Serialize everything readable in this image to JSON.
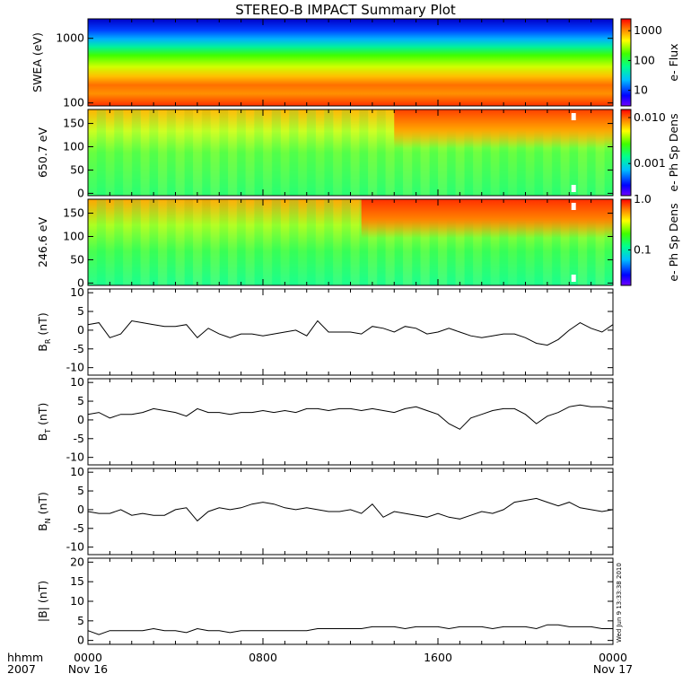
{
  "title": "STEREO-B IMPACT Summary Plot",
  "timestamp": "Wed Jun  9 13:33:38 2010",
  "footer": {
    "left_label_top": "hhmm",
    "left_label_bottom": "2007",
    "date_start": "Nov 16",
    "date_end": "Nov 17"
  },
  "chart_data": [
    {
      "type": "heatmap",
      "name": "swea",
      "ylabel": "SWEA (eV)",
      "yscale": "log",
      "ylim": [
        90,
        2000
      ],
      "yticks": [
        {
          "v": 100,
          "label": "100"
        },
        {
          "v": 1000,
          "label": "1000"
        }
      ],
      "colorbar": {
        "label": "e- Flux",
        "scale": "log",
        "range": [
          3,
          2500
        ],
        "ticks": [
          {
            "v": 10,
            "label": "10"
          },
          {
            "v": 100,
            "label": "100"
          },
          {
            "v": 1000,
            "label": "1000"
          }
        ]
      },
      "xticks": [
        "0000",
        "0800",
        "1600",
        "0000"
      ]
    },
    {
      "type": "heatmap",
      "name": "pad650",
      "ylabel": "650.7 eV",
      "ylim": [
        -5,
        180
      ],
      "yticks": [
        {
          "v": 0,
          "label": "0"
        },
        {
          "v": 50,
          "label": "50"
        },
        {
          "v": 100,
          "label": "100"
        },
        {
          "v": 150,
          "label": "150"
        }
      ],
      "colorbar": {
        "label": "e- Ph Sp Dens",
        "scale": "log",
        "range": [
          0.0002,
          0.015
        ],
        "ticks": [
          {
            "v": 0.001,
            "label": "0.001"
          },
          {
            "v": 0.01,
            "label": "0.010"
          }
        ]
      },
      "xticks": [
        "0000",
        "0800",
        "1600",
        "0000"
      ]
    },
    {
      "type": "heatmap",
      "name": "pad246",
      "ylabel": "246.6 eV",
      "ylim": [
        -5,
        180
      ],
      "yticks": [
        {
          "v": 0,
          "label": "0"
        },
        {
          "v": 50,
          "label": "50"
        },
        {
          "v": 100,
          "label": "100"
        },
        {
          "v": 150,
          "label": "150"
        }
      ],
      "colorbar": {
        "label": "e- Ph Sp Dens",
        "scale": "log",
        "range": [
          0.02,
          1.0
        ],
        "ticks": [
          {
            "v": 0.1,
            "label": "0.1"
          },
          {
            "v": 1.0,
            "label": "1.0"
          }
        ]
      },
      "xticks": [
        "0000",
        "0800",
        "1600",
        "0000"
      ]
    },
    {
      "type": "line",
      "name": "br",
      "ylabel_main": "B",
      "ylabel_sub": "R",
      "ylabel_unit": " (nT)",
      "ylim": [
        -12,
        11
      ],
      "yticks": [
        {
          "v": -10,
          "label": "-10"
        },
        {
          "v": -5,
          "label": "-5"
        },
        {
          "v": 0,
          "label": "0"
        },
        {
          "v": 5,
          "label": "5"
        },
        {
          "v": 10,
          "label": "10"
        }
      ],
      "x_hours": [
        0,
        0.5,
        1,
        1.5,
        2,
        2.5,
        3,
        3.5,
        4,
        4.5,
        5,
        5.5,
        6,
        6.5,
        7,
        7.5,
        8,
        8.5,
        9,
        9.5,
        10,
        10.5,
        11,
        11.5,
        12,
        12.5,
        13,
        13.5,
        14,
        14.5,
        15,
        15.5,
        16,
        16.5,
        17,
        17.5,
        18,
        18.5,
        19,
        19.5,
        20,
        20.5,
        21,
        21.5,
        22,
        22.5,
        23,
        23.5,
        24
      ],
      "values": [
        1.5,
        2.0,
        -2.0,
        -1.0,
        2.5,
        2.0,
        1.5,
        1.0,
        1.0,
        1.5,
        -2.0,
        0.5,
        -1.0,
        -2.0,
        -1.0,
        -1.0,
        -1.5,
        -1.0,
        -0.5,
        0.0,
        -1.5,
        2.5,
        -0.5,
        -0.5,
        -0.5,
        -1.0,
        1.0,
        0.5,
        -0.5,
        1.0,
        0.5,
        -1.0,
        -0.5,
        0.5,
        -0.5,
        -1.5,
        -2.0,
        -1.5,
        -1.0,
        -1.0,
        -2.0,
        -3.5,
        -4.0,
        -2.5,
        0.0,
        2.0,
        0.5,
        -0.5,
        1.5
      ]
    },
    {
      "type": "line",
      "name": "bt",
      "ylabel_main": "B",
      "ylabel_sub": "T",
      "ylabel_unit": " (nT)",
      "ylim": [
        -12,
        11
      ],
      "yticks": [
        {
          "v": -10,
          "label": "-10"
        },
        {
          "v": -5,
          "label": "-5"
        },
        {
          "v": 0,
          "label": "0"
        },
        {
          "v": 5,
          "label": "5"
        },
        {
          "v": 10,
          "label": "10"
        }
      ],
      "x_hours": [
        0,
        0.5,
        1,
        1.5,
        2,
        2.5,
        3,
        3.5,
        4,
        4.5,
        5,
        5.5,
        6,
        6.5,
        7,
        7.5,
        8,
        8.5,
        9,
        9.5,
        10,
        10.5,
        11,
        11.5,
        12,
        12.5,
        13,
        13.5,
        14,
        14.5,
        15,
        15.5,
        16,
        16.5,
        17,
        17.5,
        18,
        18.5,
        19,
        19.5,
        20,
        20.5,
        21,
        21.5,
        22,
        22.5,
        23,
        23.5,
        24
      ],
      "values": [
        1.5,
        2.0,
        0.5,
        1.5,
        1.5,
        2.0,
        3.0,
        2.5,
        2.0,
        1.0,
        3.0,
        2.0,
        2.0,
        1.5,
        2.0,
        2.0,
        2.5,
        2.0,
        2.5,
        2.0,
        3.0,
        3.0,
        2.5,
        3.0,
        3.0,
        2.5,
        3.0,
        2.5,
        2.0,
        3.0,
        3.5,
        2.5,
        1.5,
        -1.0,
        -2.5,
        0.5,
        1.5,
        2.5,
        3.0,
        3.0,
        1.5,
        -1.0,
        1.0,
        2.0,
        3.5,
        4.0,
        3.5,
        3.5,
        3.0
      ]
    },
    {
      "type": "line",
      "name": "bn",
      "ylabel_main": "B",
      "ylabel_sub": "N",
      "ylabel_unit": " (nT)",
      "ylim": [
        -12,
        11
      ],
      "yticks": [
        {
          "v": -10,
          "label": "-10"
        },
        {
          "v": -5,
          "label": "-5"
        },
        {
          "v": 0,
          "label": "0"
        },
        {
          "v": 5,
          "label": "5"
        },
        {
          "v": 10,
          "label": "10"
        }
      ],
      "x_hours": [
        0,
        0.5,
        1,
        1.5,
        2,
        2.5,
        3,
        3.5,
        4,
        4.5,
        5,
        5.5,
        6,
        6.5,
        7,
        7.5,
        8,
        8.5,
        9,
        9.5,
        10,
        10.5,
        11,
        11.5,
        12,
        12.5,
        13,
        13.5,
        14,
        14.5,
        15,
        15.5,
        16,
        16.5,
        17,
        17.5,
        18,
        18.5,
        19,
        19.5,
        20,
        20.5,
        21,
        21.5,
        22,
        22.5,
        23,
        23.5,
        24
      ],
      "values": [
        -0.5,
        -1.0,
        -1.0,
        0.0,
        -1.5,
        -1.0,
        -1.5,
        -1.5,
        0.0,
        0.5,
        -3.0,
        -0.5,
        0.5,
        0.0,
        0.5,
        1.5,
        2.0,
        1.5,
        0.5,
        0.0,
        0.5,
        0.0,
        -0.5,
        -0.5,
        0.0,
        -1.0,
        1.5,
        -2.0,
        -0.5,
        -1.0,
        -1.5,
        -2.0,
        -1.0,
        -2.0,
        -2.5,
        -1.5,
        -0.5,
        -1.0,
        0.0,
        2.0,
        2.5,
        3.0,
        2.0,
        1.0,
        2.0,
        0.5,
        0.0,
        -0.5,
        0.0
      ]
    },
    {
      "type": "line",
      "name": "bmag",
      "ylabel_main": "|B|",
      "ylabel_sub": "",
      "ylabel_unit": " (nT)",
      "ylim": [
        -1,
        21
      ],
      "yticks": [
        {
          "v": 0,
          "label": "0"
        },
        {
          "v": 5,
          "label": "5"
        },
        {
          "v": 10,
          "label": "10"
        },
        {
          "v": 15,
          "label": "15"
        },
        {
          "v": 20,
          "label": "20"
        }
      ],
      "x_hours": [
        0,
        0.5,
        1,
        1.5,
        2,
        2.5,
        3,
        3.5,
        4,
        4.5,
        5,
        5.5,
        6,
        6.5,
        7,
        7.5,
        8,
        8.5,
        9,
        9.5,
        10,
        10.5,
        11,
        11.5,
        12,
        12.5,
        13,
        13.5,
        14,
        14.5,
        15,
        15.5,
        16,
        16.5,
        17,
        17.5,
        18,
        18.5,
        19,
        19.5,
        20,
        20.5,
        21,
        21.5,
        22,
        22.5,
        23,
        23.5,
        24
      ],
      "values": [
        2.5,
        1.5,
        2.5,
        2.5,
        2.5,
        2.5,
        3.0,
        2.5,
        2.5,
        2.0,
        3.0,
        2.5,
        2.5,
        2.0,
        2.5,
        2.5,
        2.5,
        2.5,
        2.5,
        2.5,
        2.5,
        3.0,
        3.0,
        3.0,
        3.0,
        3.0,
        3.5,
        3.5,
        3.5,
        3.0,
        3.5,
        3.5,
        3.5,
        3.0,
        3.5,
        3.5,
        3.5,
        3.0,
        3.5,
        3.5,
        3.5,
        3.0,
        4.0,
        4.0,
        3.5,
        3.5,
        3.5,
        3.0,
        3.0
      ]
    }
  ]
}
